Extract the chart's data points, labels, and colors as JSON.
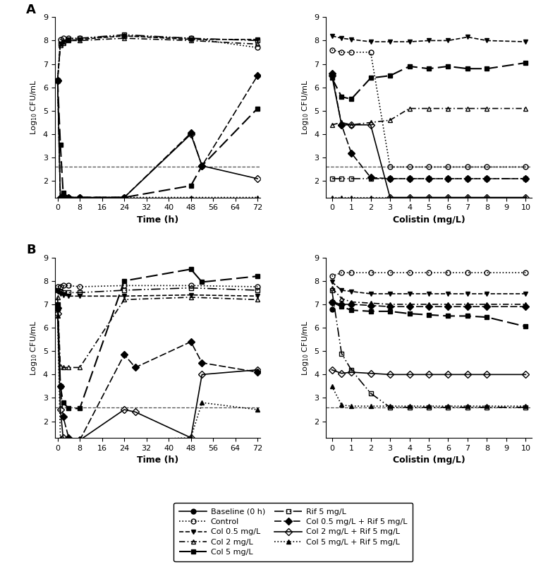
{
  "panel_A_time": {
    "baseline": {
      "x": [
        0
      ],
      "y": [
        6.3
      ]
    },
    "control": {
      "x": [
        0,
        1,
        2,
        4,
        8,
        24,
        48,
        72
      ],
      "y": [
        6.3,
        8.05,
        8.1,
        8.1,
        8.1,
        8.2,
        8.1,
        7.7
      ]
    },
    "col05": {
      "x": [
        0,
        1,
        2,
        4,
        8,
        24,
        48,
        72
      ],
      "y": [
        6.3,
        7.85,
        7.95,
        8.0,
        8.05,
        8.2,
        8.05,
        8.05
      ]
    },
    "col2": {
      "x": [
        0,
        1,
        2,
        4,
        8,
        24,
        48,
        72
      ],
      "y": [
        6.3,
        7.8,
        7.9,
        8.0,
        8.0,
        8.1,
        8.0,
        7.85
      ]
    },
    "col5": {
      "x": [
        0,
        1,
        2,
        4,
        8,
        24,
        48,
        52,
        72
      ],
      "y": [
        6.3,
        3.55,
        1.5,
        1.3,
        1.3,
        1.3,
        1.8,
        2.65,
        5.1
      ]
    },
    "rif5": {
      "x": [
        0,
        1,
        2,
        4,
        8,
        24,
        48,
        72
      ],
      "y": [
        6.3,
        7.85,
        7.95,
        8.05,
        8.1,
        8.25,
        8.1,
        8.0
      ]
    },
    "col05rif5": {
      "x": [
        0,
        1,
        2,
        4,
        8,
        24,
        48,
        52,
        72
      ],
      "y": [
        6.3,
        1.3,
        1.3,
        1.3,
        1.3,
        1.3,
        4.05,
        2.65,
        6.5
      ]
    },
    "col2rif5": {
      "x": [
        0,
        1,
        2,
        4,
        8,
        24,
        48,
        52,
        72
      ],
      "y": [
        6.3,
        1.3,
        1.3,
        1.3,
        1.3,
        1.3,
        4.0,
        2.65,
        2.1
      ]
    },
    "col5rif5": {
      "x": [
        0,
        1,
        2,
        4,
        8,
        24,
        48,
        72
      ],
      "y": [
        6.3,
        1.3,
        1.3,
        1.3,
        1.3,
        1.3,
        1.3,
        1.3
      ]
    }
  },
  "panel_A_col": {
    "baseline": {
      "x": [
        0
      ],
      "y": [
        6.5
      ]
    },
    "control": {
      "x": [
        0,
        0.5,
        1,
        2,
        3,
        4,
        5,
        6,
        7,
        8,
        10
      ],
      "y": [
        7.6,
        7.5,
        7.5,
        7.5,
        2.6,
        2.6,
        2.6,
        2.6,
        2.6,
        2.6,
        2.6
      ]
    },
    "col05": {
      "x": [
        0,
        0.5,
        1,
        2,
        3,
        4,
        5,
        6,
        7,
        8,
        10
      ],
      "y": [
        8.2,
        8.1,
        8.05,
        7.95,
        7.95,
        7.95,
        8.0,
        8.0,
        8.15,
        8.0,
        7.95
      ]
    },
    "col2": {
      "x": [
        0,
        0.5,
        1,
        2,
        3,
        4,
        5,
        6,
        7,
        8,
        10
      ],
      "y": [
        4.4,
        4.5,
        4.4,
        4.5,
        4.6,
        5.1,
        5.1,
        5.1,
        5.1,
        5.1,
        5.1
      ]
    },
    "col5": {
      "x": [
        0,
        0.5,
        1,
        2,
        3,
        4,
        5,
        6,
        7,
        8,
        10
      ],
      "y": [
        6.4,
        5.6,
        5.5,
        6.4,
        6.5,
        6.9,
        6.8,
        6.9,
        6.8,
        6.8,
        7.05
      ]
    },
    "rif5": {
      "x": [
        0,
        0.5,
        1,
        2,
        3,
        4,
        5,
        6,
        7,
        8,
        10
      ],
      "y": [
        2.1,
        2.1,
        2.1,
        2.1,
        2.1,
        2.1,
        2.1,
        2.1,
        2.1,
        2.1,
        2.1
      ]
    },
    "col05rif5": {
      "x": [
        0,
        0.5,
        1,
        2,
        3,
        4,
        5,
        6,
        7,
        8,
        10
      ],
      "y": [
        6.6,
        4.4,
        3.2,
        2.15,
        2.1,
        2.1,
        2.1,
        2.1,
        2.1,
        2.1,
        2.1
      ]
    },
    "col2rif5": {
      "x": [
        0,
        0.5,
        1,
        2,
        3,
        4,
        5,
        6,
        7,
        8,
        10
      ],
      "y": [
        6.5,
        4.4,
        4.4,
        4.4,
        1.3,
        1.3,
        1.3,
        1.3,
        1.3,
        1.3,
        1.3
      ]
    },
    "col5rif5": {
      "x": [
        0,
        0.5,
        1,
        2,
        3,
        4,
        5,
        6,
        7,
        8,
        10
      ],
      "y": [
        1.3,
        1.3,
        1.3,
        1.3,
        1.3,
        1.3,
        1.3,
        1.3,
        1.3,
        1.3,
        1.3
      ]
    }
  },
  "panel_B_time": {
    "baseline": {
      "x": [
        0
      ],
      "y": [
        6.8
      ]
    },
    "control": {
      "x": [
        0,
        1,
        2,
        4,
        8,
        24,
        48,
        72
      ],
      "y": [
        7.75,
        7.75,
        7.8,
        7.8,
        7.75,
        7.8,
        7.8,
        7.75
      ]
    },
    "col05": {
      "x": [
        0,
        1,
        2,
        4,
        8,
        24,
        48,
        72
      ],
      "y": [
        7.55,
        7.45,
        7.4,
        7.35,
        7.35,
        7.35,
        7.4,
        7.35
      ]
    },
    "col2": {
      "x": [
        0,
        1,
        2,
        4,
        8,
        24,
        48,
        72
      ],
      "y": [
        7.3,
        4.35,
        4.3,
        4.3,
        4.3,
        7.2,
        7.3,
        7.2
      ]
    },
    "col5": {
      "x": [
        0,
        1,
        2,
        4,
        8,
        24,
        48,
        52,
        72
      ],
      "y": [
        7.0,
        3.5,
        2.8,
        2.55,
        2.55,
        8.0,
        8.5,
        7.95,
        8.2
      ]
    },
    "rif5": {
      "x": [
        0,
        1,
        2,
        4,
        8,
        24,
        48,
        72
      ],
      "y": [
        7.6,
        7.55,
        7.5,
        7.5,
        7.5,
        7.6,
        7.7,
        7.6
      ]
    },
    "col05rif5": {
      "x": [
        0,
        1,
        2,
        4,
        8,
        24,
        28,
        48,
        52,
        72
      ],
      "y": [
        6.85,
        3.5,
        2.2,
        1.3,
        1.2,
        4.85,
        4.3,
        5.4,
        4.5,
        4.1
      ]
    },
    "col2rif5": {
      "x": [
        0,
        1,
        2,
        4,
        8,
        24,
        28,
        48,
        52,
        72
      ],
      "y": [
        6.6,
        2.5,
        1.3,
        1.2,
        1.2,
        2.5,
        2.4,
        1.3,
        4.0,
        4.2
      ]
    },
    "col5rif5": {
      "x": [
        0,
        1,
        2,
        4,
        8,
        24,
        48,
        52,
        72
      ],
      "y": [
        6.5,
        1.3,
        1.2,
        1.2,
        1.2,
        1.2,
        1.3,
        2.8,
        2.5
      ]
    }
  },
  "panel_B_col": {
    "baseline": {
      "x": [
        0
      ],
      "y": [
        6.8
      ]
    },
    "control": {
      "x": [
        0,
        0.5,
        1,
        2,
        3,
        4,
        5,
        6,
        7,
        8,
        10
      ],
      "y": [
        8.2,
        8.35,
        8.35,
        8.35,
        8.35,
        8.35,
        8.35,
        8.35,
        8.35,
        8.35,
        8.35
      ]
    },
    "col05": {
      "x": [
        0,
        0.5,
        1,
        2,
        3,
        4,
        5,
        6,
        7,
        8,
        10
      ],
      "y": [
        7.95,
        7.6,
        7.55,
        7.45,
        7.45,
        7.45,
        7.45,
        7.45,
        7.45,
        7.45,
        7.45
      ]
    },
    "col2": {
      "x": [
        0,
        0.5,
        1,
        2,
        3,
        4,
        5,
        6,
        7,
        8,
        10
      ],
      "y": [
        7.7,
        7.25,
        7.1,
        7.05,
        7.0,
        7.0,
        7.0,
        7.0,
        7.0,
        7.0,
        7.0
      ]
    },
    "col5": {
      "x": [
        0,
        0.5,
        1,
        2,
        3,
        4,
        5,
        6,
        7,
        8,
        10
      ],
      "y": [
        7.1,
        6.9,
        6.75,
        6.7,
        6.7,
        6.6,
        6.55,
        6.5,
        6.5,
        6.45,
        6.05
      ]
    },
    "rif5": {
      "x": [
        0,
        0.5,
        1,
        2,
        3,
        4,
        5,
        6,
        7,
        8,
        10
      ],
      "y": [
        7.6,
        4.9,
        4.2,
        3.2,
        2.6,
        2.6,
        2.6,
        2.6,
        2.6,
        2.6,
        2.6
      ]
    },
    "col05rif5": {
      "x": [
        0,
        0.5,
        1,
        2,
        3,
        4,
        5,
        6,
        7,
        8,
        10
      ],
      "y": [
        7.1,
        7.0,
        7.0,
        6.95,
        6.9,
        6.9,
        6.9,
        6.9,
        6.9,
        6.9,
        6.9
      ]
    },
    "col2rif5": {
      "x": [
        0,
        0.5,
        1,
        2,
        3,
        4,
        5,
        6,
        7,
        8,
        10
      ],
      "y": [
        4.2,
        4.05,
        4.1,
        4.05,
        4.0,
        4.0,
        4.0,
        4.0,
        4.0,
        4.0,
        4.0
      ]
    },
    "col5rif5": {
      "x": [
        0,
        0.5,
        1,
        2,
        3,
        4,
        5,
        6,
        7,
        8,
        10
      ],
      "y": [
        3.5,
        2.7,
        2.65,
        2.65,
        2.65,
        2.65,
        2.65,
        2.65,
        2.65,
        2.65,
        2.65
      ]
    }
  },
  "lod": 2.6,
  "ylim": [
    1.3,
    9.0
  ],
  "yticks": [
    2,
    3,
    4,
    5,
    6,
    7,
    8,
    9
  ],
  "time_xlim": [
    -1,
    73
  ],
  "time_xticks": [
    0,
    8,
    16,
    24,
    32,
    40,
    48,
    56,
    64,
    72
  ],
  "col_xlim": [
    -0.3,
    10.3
  ],
  "col_xticks": [
    0,
    1,
    2,
    3,
    4,
    5,
    6,
    7,
    8,
    9,
    10
  ],
  "legend_labels": [
    "Baseline (0 h)",
    "Control",
    "Col 0.5 mg/L",
    "Col 2 mg/L",
    "Col 5 mg/L",
    "Rif 5 mg/L",
    "Col 0.5 mg/L + Rif 5 mg/L",
    "Col 2 mg/L + Rif 5 mg/L",
    "Col 5 mg/L + Rif 5 mg/L"
  ]
}
